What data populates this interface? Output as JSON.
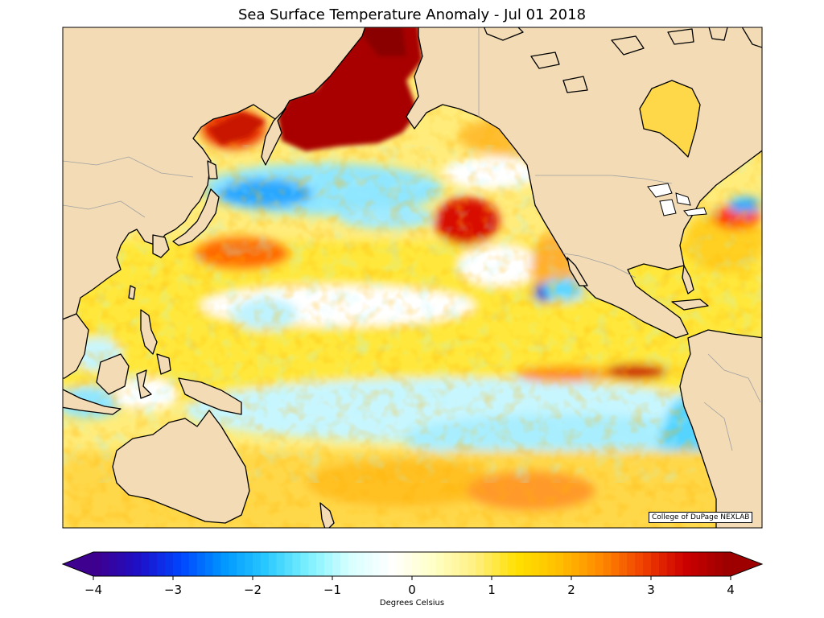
{
  "title": "Sea Surface Temperature Anomaly - Jul 01 2018",
  "credit": "College of DuPage NEXLAB",
  "colorbar": {
    "label": "Degrees Celsius",
    "min": -4,
    "max": 4,
    "ticks": [
      "−4",
      "−3",
      "−2",
      "−1",
      "0",
      "1",
      "2",
      "3",
      "4"
    ],
    "colors": [
      "#3d008f",
      "#1d10c8",
      "#0045ff",
      "#0096ff",
      "#28c8ff",
      "#7af0ff",
      "#d6ffff",
      "#ffffff",
      "#ffffc8",
      "#fff080",
      "#ffe000",
      "#ffc000",
      "#ff8a00",
      "#f04000",
      "#cc0000",
      "#9e0000"
    ]
  },
  "map": {
    "region": "North Pacific Ocean",
    "land_color": "#f3dcb5",
    "coast_color": "#000000",
    "border_color": "#a0a0a0"
  }
}
